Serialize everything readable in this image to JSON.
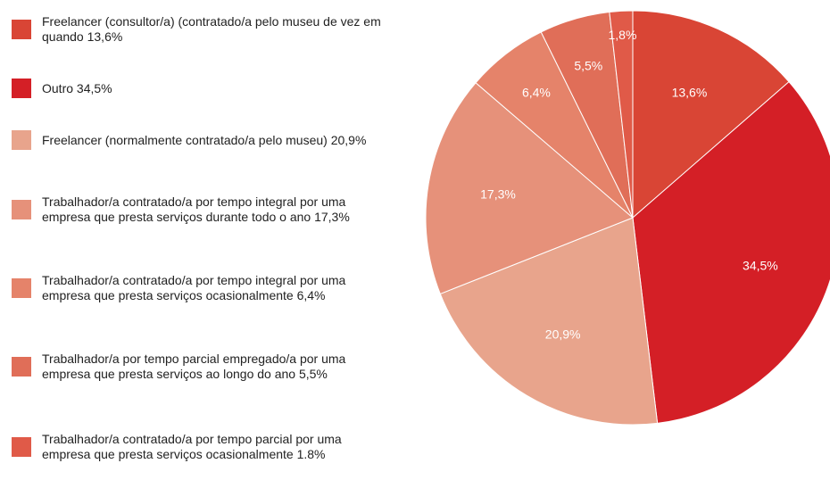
{
  "chart_data": {
    "type": "pie",
    "categories": [
      "Freelancer (consultor/a) (contratado/a pelo museu de vez em quando 13,6%",
      "Outro 34,5%",
      "Freelancer (normalmente contratado/a pelo museu) 20,9%",
      "Trabalhador/a contratado/a por tempo integral por uma empresa que presta serviços durante todo o ano 17,3%",
      "Trabalhador/a contratado/a por tempo integral por uma empresa que presta serviços ocasionalmente 6,4%",
      "Trabalhador/a por tempo parcial empregado/a por uma empresa que presta serviços ao longo do ano 5,5%",
      "Trabalhador/a contratado/a por tempo parcial por uma empresa que presta serviços ocasionalmente 1.8%"
    ],
    "values": [
      13.6,
      34.5,
      20.9,
      17.3,
      6.4,
      5.5,
      1.8
    ],
    "value_labels": [
      "13,6%",
      "34,5%",
      "20,9%",
      "17,3%",
      "6,4%",
      "5,5%",
      "1,8%"
    ],
    "colors": [
      "#d94535",
      "#d41f26",
      "#e8a48c",
      "#e6917a",
      "#e5836a",
      "#e06e58",
      "#e05a48"
    ]
  }
}
